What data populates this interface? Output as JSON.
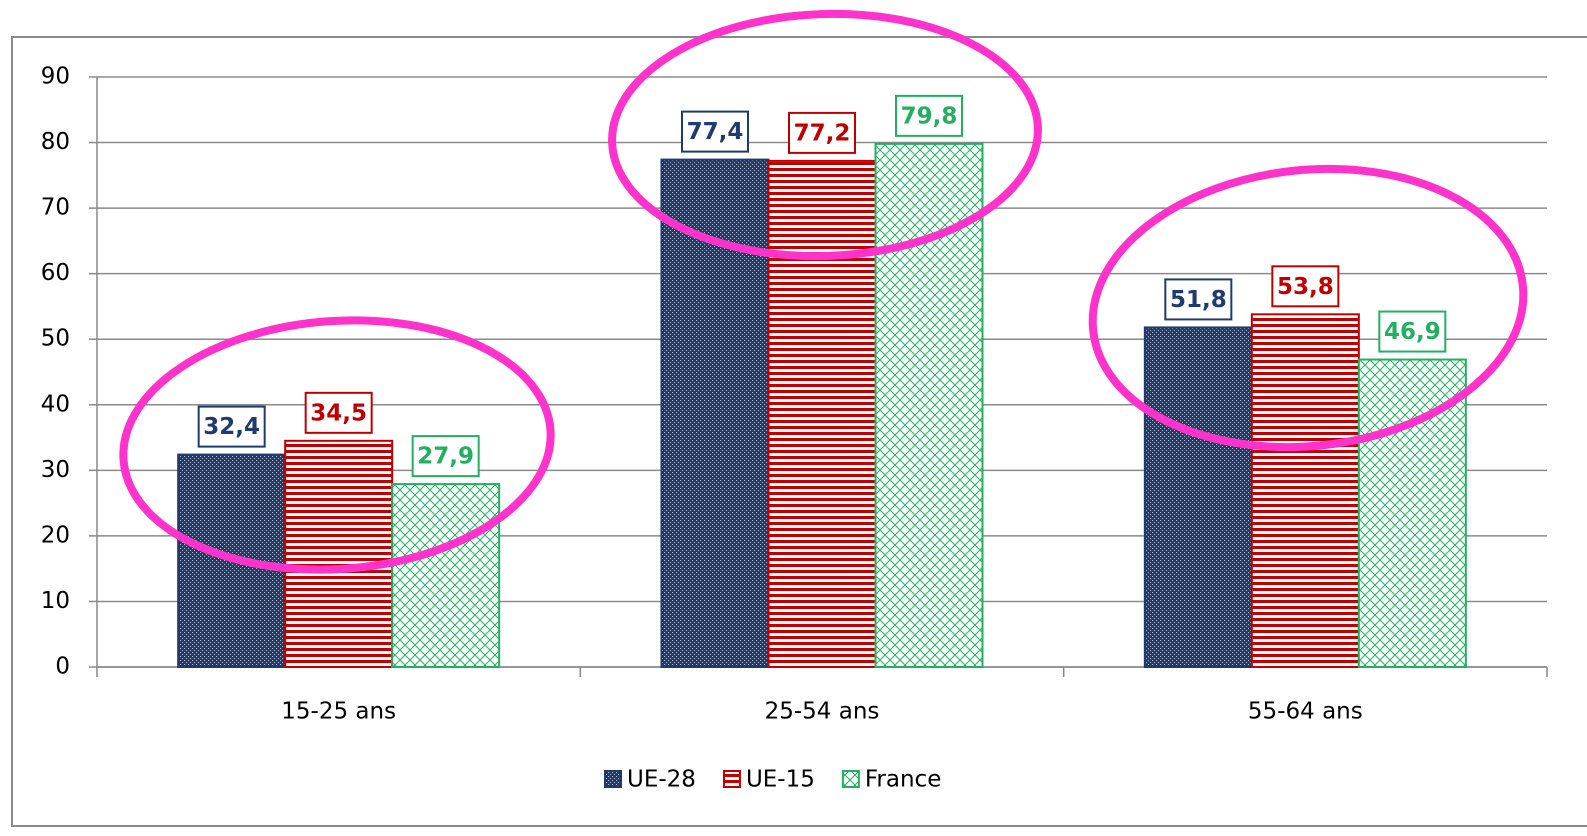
{
  "chart_data": {
    "type": "bar",
    "categories": [
      "15-25 ans",
      "25-54 ans",
      "55-64 ans"
    ],
    "series": [
      {
        "name": "UE-28",
        "color": "#1f3a6e",
        "pattern": "crosshatch",
        "values": [
          32.4,
          77.4,
          51.8
        ],
        "value_labels": [
          "32,4",
          "77,4",
          "51,8"
        ]
      },
      {
        "name": "UE-15",
        "color": "#c00000",
        "pattern": "horizontal",
        "values": [
          34.5,
          77.2,
          53.8
        ],
        "value_labels": [
          "34,5",
          "77,2",
          "53,8"
        ]
      },
      {
        "name": "France",
        "color": "#22b060",
        "pattern": "diagonal",
        "values": [
          27.9,
          79.8,
          46.9
        ],
        "value_labels": [
          "27,9",
          "79,8",
          "46,9"
        ]
      }
    ],
    "ylim": [
      0,
      90
    ],
    "yticks": [
      0,
      10,
      20,
      30,
      40,
      50,
      60,
      70,
      80,
      90
    ],
    "grid": true,
    "legend": "bottom"
  }
}
